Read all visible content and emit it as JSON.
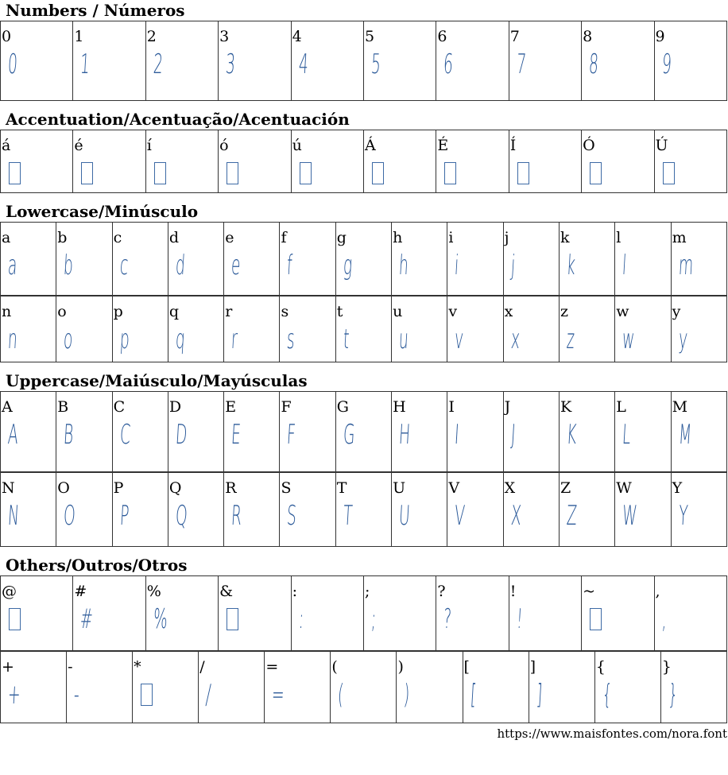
{
  "sections": [
    {
      "title": "Numbers / Números",
      "rows": [
        {
          "chars": [
            "0",
            "1",
            "2",
            "3",
            "4",
            "5",
            "6",
            "7",
            "8",
            "9"
          ],
          "missing": []
        }
      ]
    },
    {
      "title": "Accentuation/Acentuação/Acentuación",
      "rows": [
        {
          "chars": [
            "á",
            "é",
            "í",
            "ó",
            "ú",
            "Á",
            "É",
            "Í",
            "Ó",
            "Ú"
          ],
          "missing": [
            "á",
            "é",
            "í",
            "ó",
            "ú",
            "Á",
            "É",
            "Í",
            "Ó",
            "Ú"
          ]
        }
      ]
    },
    {
      "title": "Lowercase/Minúsculo",
      "rows": [
        {
          "chars": [
            "a",
            "b",
            "c",
            "d",
            "e",
            "f",
            "g",
            "h",
            "i",
            "j",
            "k",
            "l",
            "m"
          ],
          "missing": []
        },
        {
          "chars": [
            "n",
            "o",
            "p",
            "q",
            "r",
            "s",
            "t",
            "u",
            "v",
            "x",
            "z",
            "w",
            "y"
          ],
          "missing": []
        }
      ]
    },
    {
      "title": "Uppercase/Maiúsculo/Mayúsculas",
      "rows": [
        {
          "chars": [
            "A",
            "B",
            "C",
            "D",
            "E",
            "F",
            "G",
            "H",
            "I",
            "J",
            "K",
            "L",
            "M"
          ],
          "missing": []
        },
        {
          "chars": [
            "N",
            "O",
            "P",
            "Q",
            "R",
            "S",
            "T",
            "U",
            "V",
            "X",
            "Z",
            "W",
            "Y"
          ],
          "missing": []
        }
      ]
    },
    {
      "title": "Others/Outros/Otros",
      "rows": [
        {
          "chars": [
            "@",
            "#",
            "%",
            "&",
            ":",
            ";",
            "?",
            "!",
            "~",
            ","
          ],
          "missing": [
            "@",
            "&",
            "~"
          ]
        },
        {
          "chars": [
            "+",
            "-",
            "*",
            "/",
            "=",
            "(",
            ")",
            "[",
            "]",
            "{",
            "}"
          ],
          "missing": [
            "*"
          ]
        }
      ]
    }
  ],
  "footer_url": "https://www.maisfontes.com/nora.font",
  "colors": {
    "glyph": "#2d5b9a",
    "border": "#333333"
  }
}
